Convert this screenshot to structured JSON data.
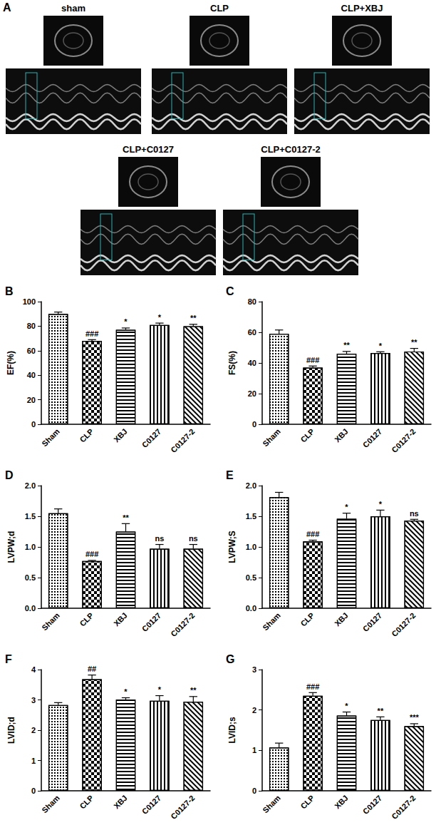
{
  "panel_a": {
    "label": "A",
    "images": [
      "sham",
      "CLP",
      "CLP+XBJ",
      "CLP+C0127",
      "CLP+C0127-2"
    ]
  },
  "chart_data": [
    {
      "type": "bar",
      "annotations": [
        "B"
      ],
      "ylabel": "EF(%)",
      "categories": [
        "Sham",
        "CLP",
        "XBJ",
        "C0127",
        "C0127-2"
      ],
      "values": [
        90,
        68,
        77,
        81,
        80
      ],
      "errors": [
        1.5,
        1,
        1.5,
        1.5,
        1.5
      ],
      "significance": [
        null,
        "###",
        "*",
        "*",
        "**"
      ],
      "ylim": [
        0,
        100
      ],
      "yticks": [
        0,
        20,
        40,
        60,
        80,
        100
      ],
      "grid": false,
      "color": "#ffffff"
    },
    {
      "type": "bar",
      "annotations": [
        "C"
      ],
      "ylabel": "FS(%)",
      "categories": [
        "Sham",
        "CLP",
        "XBJ",
        "C0127",
        "C0127-2"
      ],
      "values": [
        59,
        37,
        46,
        46.5,
        47.5
      ],
      "errors": [
        2.5,
        1,
        1.5,
        0.8,
        2
      ],
      "significance": [
        null,
        "###",
        "**",
        "*",
        "**"
      ],
      "ylim": [
        0,
        80
      ],
      "yticks": [
        0,
        20,
        40,
        60,
        80
      ],
      "grid": false,
      "color": "#ffffff"
    },
    {
      "type": "bar",
      "annotations": [
        "D"
      ],
      "ylabel": "LVPW;d",
      "categories": [
        "Sham",
        "CLP",
        "XBJ",
        "C0127",
        "C0127-2"
      ],
      "values": [
        1.55,
        0.77,
        1.25,
        0.97,
        0.97
      ],
      "errors": [
        0.07,
        0.01,
        0.13,
        0.07,
        0.07
      ],
      "significance": [
        null,
        "###",
        "**",
        "ns",
        "ns"
      ],
      "ylim": [
        0,
        2
      ],
      "yticks": [
        {
          "value": 0,
          "label": "0.0"
        },
        0.5,
        {
          "value": 1,
          "label": "1.0"
        },
        1.5,
        {
          "value": 2,
          "label": "2.0"
        }
      ],
      "grid": false,
      "color": "#ffffff"
    },
    {
      "type": "bar",
      "annotations": [
        "E"
      ],
      "ylabel": "LVPW;S",
      "categories": [
        "Sham",
        "CLP",
        "XBJ",
        "C0127",
        "C0127-2"
      ],
      "values": [
        1.81,
        1.09,
        1.46,
        1.5,
        1.43
      ],
      "errors": [
        0.08,
        0.02,
        0.09,
        0.1,
        0.02
      ],
      "significance": [
        null,
        "###",
        "*",
        "*",
        "ns"
      ],
      "ylim": [
        0,
        2
      ],
      "yticks": [
        {
          "value": 0,
          "label": "0.0"
        },
        0.5,
        {
          "value": 1,
          "label": "1.0"
        },
        1.5,
        {
          "value": 2,
          "label": "2.0"
        }
      ],
      "grid": false,
      "color": "#ffffff"
    },
    {
      "type": "bar",
      "annotations": [
        "F"
      ],
      "ylabel": "LVID;d",
      "categories": [
        "Sham",
        "CLP",
        "XBJ",
        "C0127",
        "C0127-2"
      ],
      "values": [
        2.83,
        3.68,
        3.01,
        2.97,
        2.94
      ],
      "errors": [
        0.08,
        0.14,
        0.06,
        0.17,
        0.17
      ],
      "significance": [
        null,
        "##",
        "*",
        "*",
        "**"
      ],
      "ylim": [
        0,
        4
      ],
      "yticks": [
        0,
        1,
        2,
        3,
        4
      ],
      "grid": false,
      "color": "#ffffff"
    },
    {
      "type": "bar",
      "annotations": [
        "G"
      ],
      "ylabel": "LVID;s",
      "categories": [
        "Sham",
        "CLP",
        "XBJ",
        "C0127",
        "C0127-2"
      ],
      "values": [
        1.07,
        2.35,
        1.86,
        1.75,
        1.6
      ],
      "errors": [
        0.11,
        0.08,
        0.09,
        0.08,
        0.06
      ],
      "significance": [
        null,
        "###",
        "*",
        "**",
        "***"
      ],
      "ylim": [
        0,
        3
      ],
      "yticks": [
        0,
        1,
        2,
        3
      ],
      "grid": false,
      "color": "#ffffff"
    }
  ]
}
